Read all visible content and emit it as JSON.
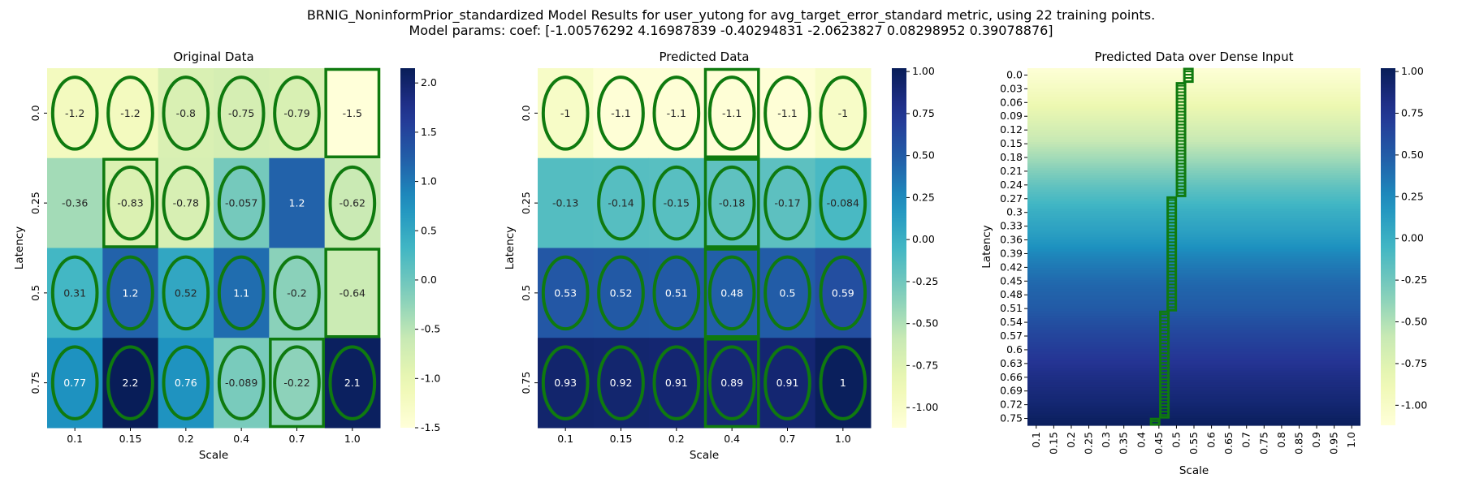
{
  "figure": {
    "title_line1": "BRNIG_NoninformPrior_standardized Model Results for user_yutong for avg_target_error_standard metric, using 22 training points.",
    "title_line2": "Model params: coef: [-1.00576292  4.16987839 -0.40294831 -2.0623827   0.08298952  0.39078876]"
  },
  "colormap": {
    "name": "YlGnBu",
    "stops": [
      "#ffffd9",
      "#edf8b1",
      "#c7e9b4",
      "#7fcdbb",
      "#41b6c4",
      "#1d91c0",
      "#225ea8",
      "#253494",
      "#081d58"
    ]
  },
  "marker_color": "#0f7a0f",
  "chart_data": [
    {
      "type": "heatmap",
      "title": "Original Data",
      "xlabel": "Scale",
      "ylabel": "Latency",
      "x_ticks": [
        "0.1",
        "0.15",
        "0.2",
        "0.4",
        "0.7",
        "1.0"
      ],
      "y_ticks": [
        "0.0",
        "0.25",
        "0.5",
        "0.75"
      ],
      "values": [
        [
          -1.2,
          -1.2,
          -0.8,
          -0.75,
          -0.79,
          -1.5
        ],
        [
          -0.36,
          -0.83,
          -0.78,
          -0.057,
          1.2,
          -0.62
        ],
        [
          0.31,
          1.2,
          0.52,
          1.1,
          -0.2,
          -0.64
        ],
        [
          0.77,
          2.2,
          0.76,
          -0.089,
          -0.22,
          2.1
        ]
      ],
      "annotations": [
        [
          "-1.2",
          "-1.2",
          "-0.8",
          "-0.75",
          "-0.79",
          "-1.5"
        ],
        [
          "-0.36",
          "-0.83",
          "-0.78",
          "-0.057",
          "1.2",
          "-0.62"
        ],
        [
          "0.31",
          "1.2",
          "0.52",
          "1.1",
          "-0.2",
          "-0.64"
        ],
        [
          "0.77",
          "2.2",
          "0.76",
          "-0.089",
          "-0.22",
          "2.1"
        ]
      ],
      "vmin": -1.5,
      "vmax": 2.15,
      "colorbar_ticks": [
        "2.0",
        "1.5",
        "1.0",
        "0.5",
        "0.0",
        "-0.5",
        "-1.0",
        "-1.5"
      ],
      "colorbar_tick_values": [
        2.0,
        1.5,
        1.0,
        0.5,
        0.0,
        -0.5,
        -1.0,
        -1.5
      ],
      "ellipses": [
        [
          0,
          0
        ],
        [
          0,
          1
        ],
        [
          0,
          2
        ],
        [
          0,
          3
        ],
        [
          0,
          4
        ],
        [
          1,
          1
        ],
        [
          1,
          2
        ],
        [
          1,
          3
        ],
        [
          1,
          5
        ],
        [
          2,
          0
        ],
        [
          2,
          1
        ],
        [
          2,
          2
        ],
        [
          2,
          3
        ],
        [
          2,
          4
        ],
        [
          3,
          0
        ],
        [
          3,
          1
        ],
        [
          3,
          2
        ],
        [
          3,
          3
        ],
        [
          3,
          4
        ],
        [
          3,
          5
        ]
      ],
      "boxes": [
        [
          0,
          5
        ],
        [
          1,
          1
        ],
        [
          2,
          5
        ],
        [
          3,
          4
        ]
      ]
    },
    {
      "type": "heatmap",
      "title": "Predicted Data",
      "xlabel": "Scale",
      "ylabel": "Latency",
      "x_ticks": [
        "0.1",
        "0.15",
        "0.2",
        "0.4",
        "0.7",
        "1.0"
      ],
      "y_ticks": [
        "0.0",
        "0.25",
        "0.5",
        "0.75"
      ],
      "values": [
        [
          -1,
          -1.1,
          -1.1,
          -1.1,
          -1.1,
          -1
        ],
        [
          -0.13,
          -0.14,
          -0.15,
          -0.18,
          -0.17,
          -0.084
        ],
        [
          0.53,
          0.52,
          0.51,
          0.48,
          0.5,
          0.59
        ],
        [
          0.93,
          0.92,
          0.91,
          0.89,
          0.91,
          1
        ]
      ],
      "annotations": [
        [
          "-1",
          "-1.1",
          "-1.1",
          "-1.1",
          "-1.1",
          "-1"
        ],
        [
          "-0.13",
          "-0.14",
          "-0.15",
          "-0.18",
          "-0.17",
          "-0.084"
        ],
        [
          "0.53",
          "0.52",
          "0.51",
          "0.48",
          "0.5",
          "0.59"
        ],
        [
          "0.93",
          "0.92",
          "0.91",
          "0.89",
          "0.91",
          "1"
        ]
      ],
      "vmin": -1.12,
      "vmax": 1.02,
      "colorbar_ticks": [
        "1.00",
        "0.75",
        "0.50",
        "0.25",
        "0.00",
        "-0.25",
        "-0.50",
        "-0.75",
        "-1.00"
      ],
      "colorbar_tick_values": [
        1.0,
        0.75,
        0.5,
        0.25,
        0.0,
        -0.25,
        -0.5,
        -0.75,
        -1.0
      ],
      "ellipses": [
        [
          0,
          0
        ],
        [
          0,
          1
        ],
        [
          0,
          2
        ],
        [
          0,
          3
        ],
        [
          0,
          4
        ],
        [
          0,
          5
        ],
        [
          1,
          1
        ],
        [
          1,
          2
        ],
        [
          1,
          3
        ],
        [
          1,
          4
        ],
        [
          1,
          5
        ],
        [
          2,
          0
        ],
        [
          2,
          1
        ],
        [
          2,
          2
        ],
        [
          2,
          3
        ],
        [
          2,
          4
        ],
        [
          2,
          5
        ],
        [
          3,
          0
        ],
        [
          3,
          1
        ],
        [
          3,
          2
        ],
        [
          3,
          3
        ],
        [
          3,
          4
        ],
        [
          3,
          5
        ]
      ],
      "boxes": [
        [
          0,
          3
        ],
        [
          1,
          3
        ],
        [
          2,
          3
        ],
        [
          3,
          3
        ]
      ]
    },
    {
      "type": "heatmap",
      "title": "Predicted Data over Dense Input",
      "xlabel": "Scale",
      "ylabel": "Latency",
      "x_ticks": [
        "0.1",
        "0.15",
        "0.2",
        "0.25",
        "0.3",
        "0.35",
        "0.4",
        "0.45",
        "0.5",
        "0.55",
        "0.6",
        "0.65",
        "0.7",
        "0.75",
        "0.8",
        "0.85",
        "0.9",
        "0.95",
        "1.0"
      ],
      "y_ticks": [
        "0.0",
        "0.03",
        "0.06",
        "0.09",
        "0.12",
        "0.15",
        "0.18",
        "0.21",
        "0.24",
        "0.27",
        "0.3",
        "0.33",
        "0.36",
        "0.39",
        "0.42",
        "0.45",
        "0.48",
        "0.51",
        "0.54",
        "0.57",
        "0.6",
        "0.63",
        "0.66",
        "0.69",
        "0.72",
        "0.75"
      ],
      "x_range": [
        0.1,
        1.0
      ],
      "y_range": [
        0.0,
        0.75
      ],
      "value_by_latency": {
        "latency": [
          0.0,
          0.05,
          0.1,
          0.15,
          0.2,
          0.25,
          0.3,
          0.35,
          0.4,
          0.45,
          0.5,
          0.55,
          0.6,
          0.65,
          0.7,
          0.75
        ],
        "value": [
          -1.1,
          -0.95,
          -0.78,
          -0.6,
          -0.4,
          -0.18,
          0.0,
          0.13,
          0.3,
          0.43,
          0.5,
          0.62,
          0.72,
          0.82,
          0.9,
          1.0
        ]
      },
      "vmin": -1.12,
      "vmax": 1.02,
      "colorbar_ticks": [
        "1.00",
        "0.75",
        "0.50",
        "0.25",
        "0.00",
        "-0.25",
        "-0.50",
        "-0.75",
        "-1.00"
      ],
      "colorbar_tick_values": [
        1.0,
        0.75,
        0.5,
        0.25,
        0.0,
        -0.25,
        -0.5,
        -0.75,
        -1.0
      ],
      "optimum_path": [
        {
          "latency": [
            0.0,
            0.03
          ],
          "scale": 0.535
        },
        {
          "latency": [
            0.03,
            0.27
          ],
          "scale": 0.515
        },
        {
          "latency": [
            0.27,
            0.51
          ],
          "scale": 0.49
        },
        {
          "latency": [
            0.51,
            0.735
          ],
          "scale": 0.47
        },
        {
          "latency": [
            0.735,
            0.75
          ],
          "scale": 0.445
        }
      ]
    }
  ]
}
